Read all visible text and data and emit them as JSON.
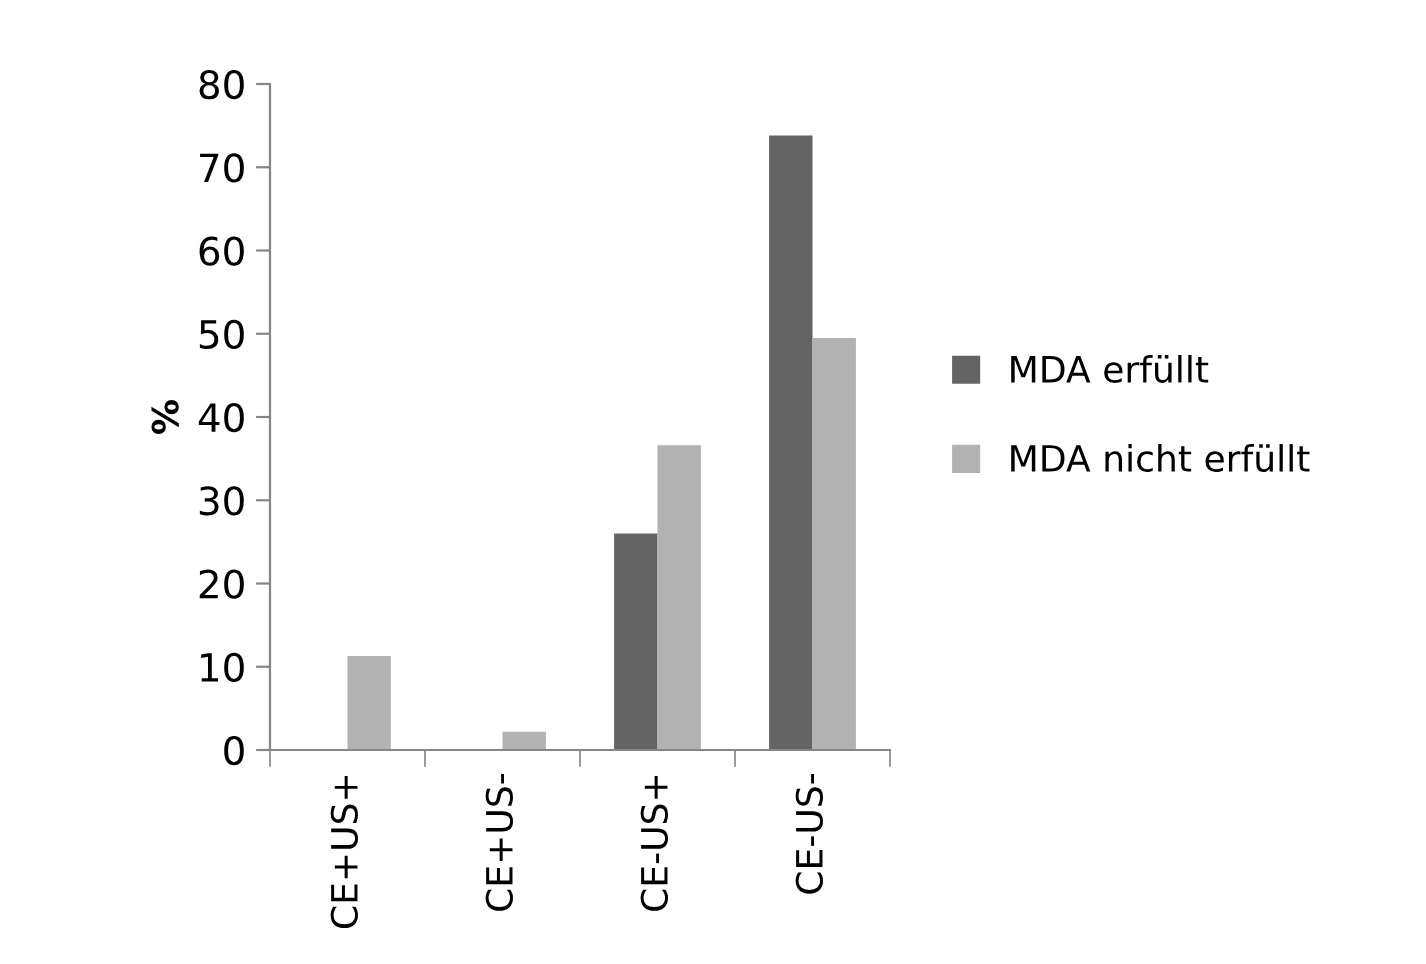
{
  "chart_data": {
    "type": "bar",
    "ylabel": "%",
    "categories": [
      "CE+US+",
      "CE+US-",
      "CE-US+",
      "CE-US-"
    ],
    "series": [
      {
        "name": "MDA erfüllt",
        "color": "#646464",
        "values": [
          0,
          0,
          26.0,
          73.8
        ]
      },
      {
        "name": "MDA nicht erfüllt",
        "color": "#b2b2b2",
        "values": [
          11.3,
          2.2,
          36.6,
          49.5
        ]
      }
    ],
    "ylim": [
      0,
      80
    ],
    "yticks": [
      0,
      10,
      20,
      30,
      40,
      50,
      60,
      70,
      80
    ],
    "grid": false,
    "legend": "right"
  }
}
